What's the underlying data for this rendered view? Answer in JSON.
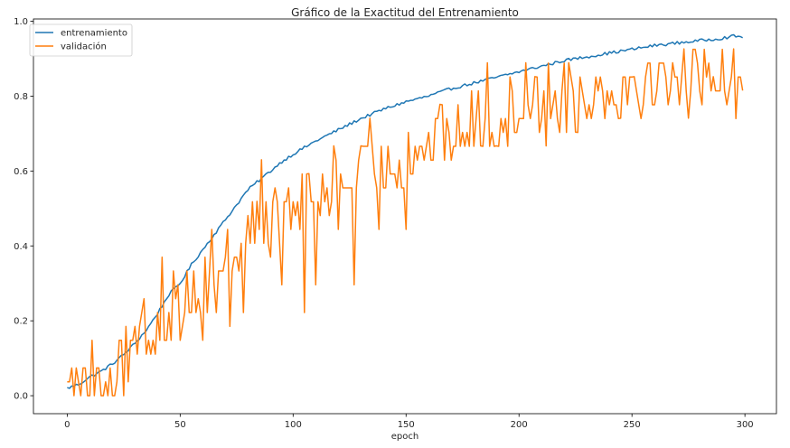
{
  "chart_data": {
    "type": "line",
    "title": "Gráfico de la Exactitud del Entrenamiento",
    "xlabel": "epoch",
    "ylabel": "",
    "xlim": [
      -14.95,
      313.95
    ],
    "ylim": [
      -0.048,
      1.006
    ],
    "xticks": [
      0,
      50,
      100,
      150,
      200,
      250,
      300
    ],
    "yticks": [
      0.0,
      0.2,
      0.4,
      0.6,
      0.8,
      1.0
    ],
    "xtick_labels": [
      "0",
      "50",
      "100",
      "150",
      "200",
      "250",
      "300"
    ],
    "ytick_labels": [
      "0.0",
      "0.2",
      "0.4",
      "0.6",
      "0.8",
      "1.0"
    ],
    "grid": false,
    "legend_position": "upper-left",
    "n_points": 300,
    "series": [
      {
        "name": "entrenamiento",
        "color": "#1f77b4",
        "anchors": [
          [
            0,
            0.02
          ],
          [
            5,
            0.03
          ],
          [
            10,
            0.05
          ],
          [
            15,
            0.065
          ],
          [
            20,
            0.085
          ],
          [
            25,
            0.11
          ],
          [
            30,
            0.14
          ],
          [
            35,
            0.175
          ],
          [
            40,
            0.22
          ],
          [
            45,
            0.27
          ],
          [
            50,
            0.3
          ],
          [
            55,
            0.35
          ],
          [
            60,
            0.39
          ],
          [
            65,
            0.43
          ],
          [
            70,
            0.47
          ],
          [
            75,
            0.51
          ],
          [
            80,
            0.55
          ],
          [
            85,
            0.575
          ],
          [
            90,
            0.6
          ],
          [
            95,
            0.625
          ],
          [
            100,
            0.645
          ],
          [
            110,
            0.68
          ],
          [
            120,
            0.71
          ],
          [
            130,
            0.74
          ],
          [
            140,
            0.765
          ],
          [
            150,
            0.785
          ],
          [
            160,
            0.8
          ],
          [
            170,
            0.82
          ],
          [
            180,
            0.835
          ],
          [
            190,
            0.85
          ],
          [
            200,
            0.865
          ],
          [
            210,
            0.88
          ],
          [
            220,
            0.895
          ],
          [
            230,
            0.905
          ],
          [
            240,
            0.915
          ],
          [
            250,
            0.925
          ],
          [
            260,
            0.935
          ],
          [
            270,
            0.942
          ],
          [
            280,
            0.948
          ],
          [
            290,
            0.955
          ],
          [
            295,
            0.96
          ],
          [
            299,
            0.958
          ]
        ],
        "noise": 0.004
      },
      {
        "name": "validación",
        "color": "#ff7f0e",
        "anchors": [
          [
            0,
            0.035
          ],
          [
            5,
            0.04
          ],
          [
            10,
            0.04
          ],
          [
            15,
            0.05
          ],
          [
            20,
            0.06
          ],
          [
            25,
            0.08
          ],
          [
            30,
            0.11
          ],
          [
            35,
            0.15
          ],
          [
            40,
            0.19
          ],
          [
            45,
            0.22
          ],
          [
            50,
            0.25
          ],
          [
            55,
            0.27
          ],
          [
            60,
            0.3
          ],
          [
            65,
            0.33
          ],
          [
            70,
            0.36
          ],
          [
            75,
            0.39
          ],
          [
            80,
            0.42
          ],
          [
            85,
            0.45
          ],
          [
            90,
            0.47
          ],
          [
            95,
            0.49
          ],
          [
            100,
            0.5
          ],
          [
            110,
            0.53
          ],
          [
            120,
            0.56
          ],
          [
            130,
            0.59
          ],
          [
            140,
            0.61
          ],
          [
            150,
            0.64
          ],
          [
            160,
            0.67
          ],
          [
            170,
            0.7
          ],
          [
            180,
            0.72
          ],
          [
            190,
            0.74
          ],
          [
            200,
            0.77
          ],
          [
            210,
            0.79
          ],
          [
            220,
            0.8
          ],
          [
            230,
            0.81
          ],
          [
            240,
            0.82
          ],
          [
            250,
            0.83
          ],
          [
            260,
            0.84
          ],
          [
            270,
            0.85
          ],
          [
            280,
            0.86
          ],
          [
            290,
            0.86
          ],
          [
            299,
            0.82
          ]
        ],
        "noise": 0.09,
        "step": 0.037,
        "min": 0.0,
        "max": 0.93,
        "fixed_points": [
          [
            0,
            0.037
          ],
          [
            1,
            0.037
          ],
          [
            2,
            0.074
          ],
          [
            5,
            0.037
          ],
          [
            6,
            0.0
          ],
          [
            8,
            0.074
          ],
          [
            9,
            0.0
          ],
          [
            11,
            0.148
          ],
          [
            12,
            0.0
          ],
          [
            14,
            0.074
          ],
          [
            17,
            0.037
          ],
          [
            21,
            0.0
          ],
          [
            23,
            0.148
          ],
          [
            31,
            0.111
          ],
          [
            34,
            0.259
          ],
          [
            42,
            0.37
          ],
          [
            50,
            0.148
          ],
          [
            53,
            0.333
          ],
          [
            60,
            0.148
          ],
          [
            64,
            0.444
          ],
          [
            66,
            0.222
          ],
          [
            72,
            0.185
          ],
          [
            78,
            0.222
          ],
          [
            84,
            0.519
          ],
          [
            86,
            0.63
          ],
          [
            95,
            0.296
          ],
          [
            105,
            0.222
          ],
          [
            107,
            0.593
          ],
          [
            110,
            0.296
          ],
          [
            118,
            0.667
          ],
          [
            120,
            0.444
          ],
          [
            127,
            0.296
          ],
          [
            130,
            0.667
          ],
          [
            134,
            0.741
          ],
          [
            138,
            0.444
          ],
          [
            150,
            0.444
          ],
          [
            165,
            0.778
          ],
          [
            183,
            0.667
          ],
          [
            186,
            0.889
          ],
          [
            190,
            0.667
          ],
          [
            203,
            0.889
          ],
          [
            207,
            0.852
          ],
          [
            212,
            0.667
          ],
          [
            222,
            0.889
          ],
          [
            225,
            0.704
          ],
          [
            245,
            0.741
          ],
          [
            251,
            0.852
          ],
          [
            268,
            0.889
          ],
          [
            273,
            0.926
          ],
          [
            275,
            0.741
          ],
          [
            286,
            0.852
          ],
          [
            295,
            0.926
          ],
          [
            299,
            0.815
          ]
        ]
      }
    ]
  }
}
